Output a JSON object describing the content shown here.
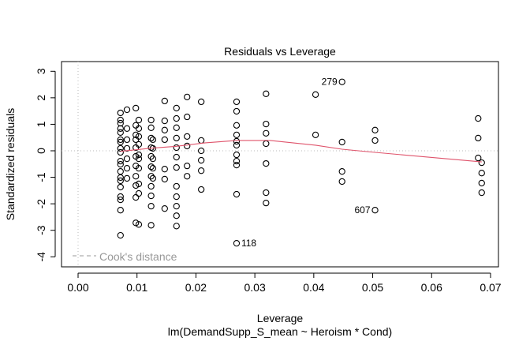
{
  "chart_data": {
    "type": "scatter",
    "title": "Residuals vs Leverage",
    "xlabel": "Leverage",
    "ylabel": "Standardized residuals",
    "subtitle": "lm(DemandSupp_S_mean ~ Heroism * Cond)",
    "xlim": [
      -0.0028,
      0.0712
    ],
    "ylim": [
      -4.1,
      3.4
    ],
    "xticks": [
      0.0,
      0.01,
      0.02,
      0.03,
      0.04,
      0.05,
      0.06,
      0.07
    ],
    "xtick_labels": [
      "0.00",
      "0.01",
      "0.02",
      "0.03",
      "0.04",
      "0.05",
      "0.06",
      "0.07"
    ],
    "yticks": [
      -4,
      -3,
      -2,
      -1,
      0,
      1,
      2,
      3
    ],
    "ytick_labels": [
      "-4",
      "-3",
      "-2",
      "-1",
      "0",
      "1",
      "2",
      "3"
    ],
    "legend": {
      "label": "Cook's distance",
      "placement": "bottom-left",
      "color": "#999999"
    },
    "point_color": "#000000",
    "smooth_color": "#DF536B",
    "points": [
      [
        0.0072,
        1.43
      ],
      [
        0.0072,
        1.16
      ],
      [
        0.0072,
        1.04
      ],
      [
        0.0072,
        0.84
      ],
      [
        0.0072,
        0.69
      ],
      [
        0.0072,
        0.42
      ],
      [
        0.0072,
        0.33
      ],
      [
        0.0072,
        0.09
      ],
      [
        0.0072,
        -0.06
      ],
      [
        0.0072,
        -0.39
      ],
      [
        0.0072,
        -0.51
      ],
      [
        0.0072,
        -0.78
      ],
      [
        0.0072,
        -1.01
      ],
      [
        0.0072,
        -1.13
      ],
      [
        0.0072,
        -1.37
      ],
      [
        0.0072,
        -1.73
      ],
      [
        0.0072,
        -1.85
      ],
      [
        0.0072,
        -2.24
      ],
      [
        0.0072,
        -3.19
      ],
      [
        0.0083,
        1.55
      ],
      [
        0.0083,
        0.84
      ],
      [
        0.0083,
        0.42
      ],
      [
        0.0083,
        0.09
      ],
      [
        0.0083,
        -0.3
      ],
      [
        0.0083,
        -0.66
      ],
      [
        0.0083,
        -1.04
      ],
      [
        0.0098,
        1.61
      ],
      [
        0.0103,
        1.16
      ],
      [
        0.0098,
        0.96
      ],
      [
        0.0103,
        0.84
      ],
      [
        0.0098,
        0.6
      ],
      [
        0.0103,
        0.54
      ],
      [
        0.0098,
        0.42
      ],
      [
        0.0103,
        0.24
      ],
      [
        0.0098,
        0.12
      ],
      [
        0.0103,
        -0.15
      ],
      [
        0.0098,
        -0.21
      ],
      [
        0.0103,
        -0.3
      ],
      [
        0.0098,
        -0.57
      ],
      [
        0.0103,
        -0.66
      ],
      [
        0.0098,
        -0.96
      ],
      [
        0.0103,
        -1.25
      ],
      [
        0.0098,
        -1.31
      ],
      [
        0.0103,
        -1.61
      ],
      [
        0.0098,
        -1.76
      ],
      [
        0.0098,
        -2.72
      ],
      [
        0.0103,
        -2.78
      ],
      [
        0.0124,
        1.16
      ],
      [
        0.0124,
        0.87
      ],
      [
        0.0124,
        0.48
      ],
      [
        0.0127,
        0.42
      ],
      [
        0.0124,
        0.12
      ],
      [
        0.0127,
        0.09
      ],
      [
        0.0124,
        -0.21
      ],
      [
        0.0127,
        -0.3
      ],
      [
        0.0124,
        -0.6
      ],
      [
        0.0127,
        -0.66
      ],
      [
        0.0124,
        -0.96
      ],
      [
        0.0127,
        -1.04
      ],
      [
        0.0124,
        -1.34
      ],
      [
        0.0124,
        -1.7
      ],
      [
        0.0124,
        -2.09
      ],
      [
        0.0124,
        -2.81
      ],
      [
        0.0147,
        1.88
      ],
      [
        0.0147,
        1.13
      ],
      [
        0.0147,
        0.78
      ],
      [
        0.0147,
        0.42
      ],
      [
        0.0147,
        -0.69
      ],
      [
        0.0147,
        -1.07
      ],
      [
        0.0147,
        -2.18
      ],
      [
        0.0167,
        1.61
      ],
      [
        0.0167,
        1.22
      ],
      [
        0.0167,
        0.87
      ],
      [
        0.0167,
        0.48
      ],
      [
        0.0167,
        0.12
      ],
      [
        0.0167,
        -0.24
      ],
      [
        0.0167,
        -0.63
      ],
      [
        0.0167,
        -1.34
      ],
      [
        0.0167,
        -1.73
      ],
      [
        0.0167,
        -2.09
      ],
      [
        0.0167,
        -2.45
      ],
      [
        0.0167,
        -2.84
      ],
      [
        0.0185,
        2.03
      ],
      [
        0.0185,
        1.28
      ],
      [
        0.0185,
        0.54
      ],
      [
        0.0185,
        0.18
      ],
      [
        0.0185,
        -0.57
      ],
      [
        0.0185,
        -0.96
      ],
      [
        0.0209,
        1.85
      ],
      [
        0.0209,
        0.39
      ],
      [
        0.0209,
        0.0
      ],
      [
        0.0209,
        -0.36
      ],
      [
        0.0209,
        -0.75
      ],
      [
        0.0209,
        -1.46
      ],
      [
        0.0269,
        1.85
      ],
      [
        0.0269,
        1.49
      ],
      [
        0.0269,
        0.96
      ],
      [
        0.0269,
        0.6
      ],
      [
        0.0269,
        0.36
      ],
      [
        0.0269,
        0.21
      ],
      [
        0.0269,
        -0.15
      ],
      [
        0.0269,
        -0.39
      ],
      [
        0.0269,
        -0.54
      ],
      [
        0.0269,
        -1.64
      ],
      [
        0.0269,
        -3.49
      ],
      [
        0.0319,
        2.15
      ],
      [
        0.0319,
        1.01
      ],
      [
        0.0319,
        0.66
      ],
      [
        0.0319,
        0.27
      ],
      [
        0.0319,
        -0.48
      ],
      [
        0.0319,
        -1.58
      ],
      [
        0.0319,
        -1.97
      ],
      [
        0.0403,
        2.12
      ],
      [
        0.0403,
        0.6
      ],
      [
        0.0448,
        2.6
      ],
      [
        0.0448,
        0.33
      ],
      [
        0.0448,
        -0.78
      ],
      [
        0.0448,
        -1.16
      ],
      [
        0.0504,
        0.78
      ],
      [
        0.0504,
        0.39
      ],
      [
        0.0504,
        -2.24
      ],
      [
        0.0679,
        1.22
      ],
      [
        0.0679,
        0.48
      ],
      [
        0.0679,
        -0.27
      ],
      [
        0.0685,
        -0.45
      ],
      [
        0.0685,
        -0.84
      ],
      [
        0.0685,
        -1.22
      ],
      [
        0.0685,
        -1.58
      ]
    ],
    "point_labels": [
      {
        "label": "279",
        "x": 0.0448,
        "y": 2.6,
        "side": "left"
      },
      {
        "label": "607",
        "x": 0.0504,
        "y": -2.24,
        "side": "left"
      },
      {
        "label": "118",
        "x": 0.0269,
        "y": -3.49,
        "side": "right"
      }
    ],
    "smooth": [
      [
        0.0072,
        -0.02
      ],
      [
        0.0124,
        0.1
      ],
      [
        0.0167,
        0.17
      ],
      [
        0.0216,
        0.3
      ],
      [
        0.0269,
        0.39
      ],
      [
        0.0326,
        0.39
      ],
      [
        0.0403,
        0.21
      ],
      [
        0.0448,
        0.06
      ],
      [
        0.0504,
        -0.06
      ],
      [
        0.0685,
        -0.42
      ]
    ]
  }
}
